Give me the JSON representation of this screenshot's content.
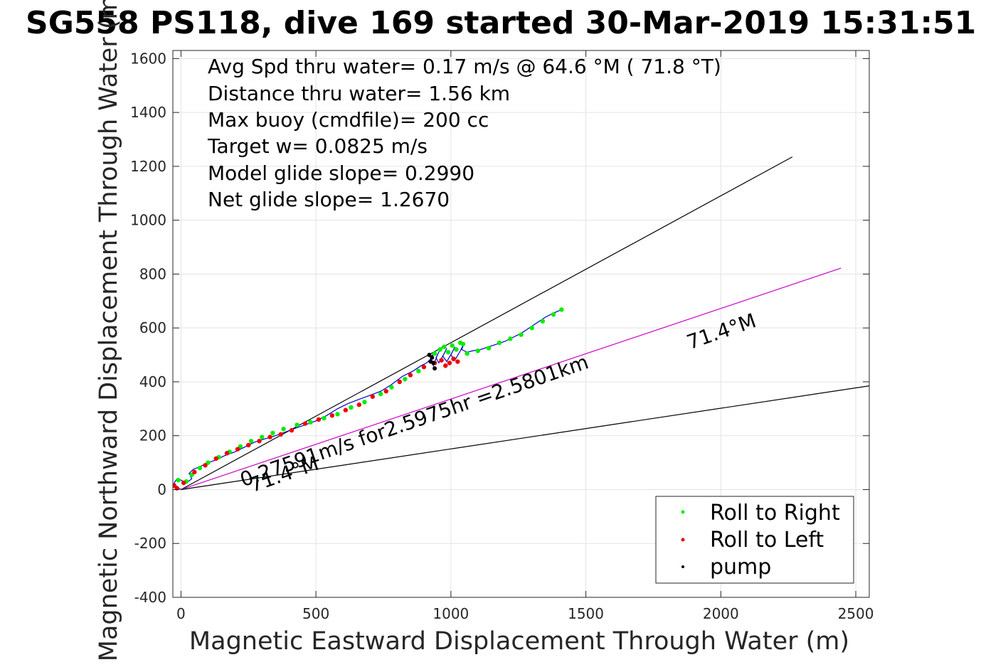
{
  "chart_data": {
    "type": "scatter",
    "title": "SG558 PS118, dive 169 started 30-Mar-2019 15:31:51",
    "xlabel": "Magnetic Eastward Displacement Through Water (m)",
    "ylabel": "Magnetic Northward Displacement Through Water (m)",
    "xlim": [
      -30,
      2550
    ],
    "ylim": [
      -400,
      1630
    ],
    "xticks": [
      0,
      500,
      1000,
      1500,
      2000,
      2500
    ],
    "yticks": [
      -400,
      -200,
      0,
      200,
      400,
      600,
      800,
      1000,
      1200,
      1400,
      1600
    ],
    "xtick_labels": [
      "0",
      "500",
      "1000",
      "1500",
      "2000",
      "2500"
    ],
    "ytick_labels": [
      "-400",
      "-200",
      "0",
      "200",
      "400",
      "600",
      "800",
      "1000",
      "1200",
      "1400",
      "1600"
    ],
    "grid": true,
    "legend_position": "bottom-right",
    "info_lines": [
      "Avg Spd thru water=  0.17 m/s @  64.6 °M ( 71.8 °T)",
      "Distance thru water=  1.56 km",
      "Max buoy (cmdfile)= 200 cc",
      "Target w= 0.0825 m/s",
      "Model glide slope= 0.2990",
      "Net glide slope= 1.2670"
    ],
    "annotations": [
      {
        "text": "0.27591m/s for2.5975hr =2.5801km",
        "x": 230,
        "y": 10,
        "angle_deg": 19
      },
      {
        "text": "71.4°M",
        "x": 265,
        "y": -10,
        "angle_deg": 19
      },
      {
        "text": "71.4°M",
        "x": 1885,
        "y": 520,
        "angle_deg": 19
      }
    ],
    "lines": [
      {
        "name": "upper-wedge",
        "color": "#000000",
        "x": [
          0,
          2265
        ],
        "y": [
          0,
          1235
        ]
      },
      {
        "name": "course",
        "color": "#cc00cc",
        "x": [
          0,
          2445
        ],
        "y": [
          0,
          822
        ]
      },
      {
        "name": "lower-wedge",
        "color": "#000000",
        "x": [
          0,
          2550
        ],
        "y": [
          0,
          385
        ]
      }
    ],
    "track_path": {
      "color": "#0000cc",
      "x": [
        0,
        -15,
        -25,
        -15,
        0,
        20,
        40,
        30,
        45,
        70,
        100,
        130,
        160,
        200,
        240,
        270,
        300,
        350,
        390,
        430,
        460,
        500,
        540,
        580,
        620,
        660,
        700,
        740,
        780,
        820,
        860,
        890,
        910,
        930,
        935,
        925,
        935,
        950,
        960,
        945,
        955,
        975,
        985,
        970,
        985,
        1005,
        1015,
        1000,
        1015,
        1035,
        1045,
        1050,
        1040,
        1060,
        1080,
        1110,
        1140,
        1170,
        1200,
        1230,
        1260,
        1290,
        1320,
        1350,
        1380,
        1410
      ],
      "y": [
        0,
        10,
        25,
        40,
        35,
        25,
        40,
        60,
        75,
        85,
        100,
        110,
        125,
        140,
        160,
        175,
        185,
        200,
        215,
        230,
        240,
        255,
        275,
        300,
        320,
        335,
        350,
        365,
        390,
        420,
        440,
        460,
        470,
        490,
        510,
        480,
        460,
        500,
        520,
        490,
        470,
        505,
        525,
        495,
        475,
        510,
        530,
        500,
        480,
        515,
        535,
        545,
        520,
        510,
        515,
        520,
        530,
        540,
        550,
        565,
        580,
        600,
        620,
        640,
        655,
        668
      ]
    },
    "series": [
      {
        "name": "Roll to Right",
        "color": "#00ee00",
        "x": [
          -10,
          20,
          40,
          70,
          100,
          140,
          180,
          220,
          260,
          300,
          340,
          380,
          430,
          480,
          530,
          580,
          630,
          680,
          740,
          780,
          830,
          880,
          940,
          960,
          975,
          990,
          1005,
          1020,
          1035,
          1045,
          1060,
          1100,
          1140,
          1180,
          1220,
          1260,
          1300,
          1340,
          1380,
          1410
        ],
        "y": [
          35,
          30,
          55,
          80,
          100,
          120,
          140,
          160,
          180,
          195,
          210,
          225,
          240,
          250,
          265,
          280,
          305,
          325,
          355,
          380,
          410,
          440,
          505,
          520,
          530,
          510,
          535,
          520,
          545,
          540,
          505,
          515,
          525,
          545,
          560,
          575,
          600,
          625,
          650,
          668
        ]
      },
      {
        "name": "Roll to Left",
        "color": "#ee0000",
        "x": [
          -25,
          -15,
          10,
          50,
          90,
          130,
          170,
          210,
          250,
          290,
          330,
          370,
          410,
          460,
          510,
          560,
          610,
          660,
          710,
          760,
          810,
          850,
          900,
          940,
          965,
          980,
          995,
          1010,
          1025
        ],
        "y": [
          15,
          5,
          25,
          65,
          90,
          115,
          135,
          150,
          165,
          180,
          195,
          205,
          220,
          245,
          260,
          275,
          295,
          315,
          345,
          365,
          400,
          425,
          455,
          470,
          480,
          460,
          470,
          485,
          475
        ]
      },
      {
        "name": "pump",
        "color": "#000000",
        "x": [
          930,
          935,
          940,
          925,
          920
        ],
        "y": [
          490,
          470,
          450,
          475,
          500
        ]
      }
    ]
  }
}
